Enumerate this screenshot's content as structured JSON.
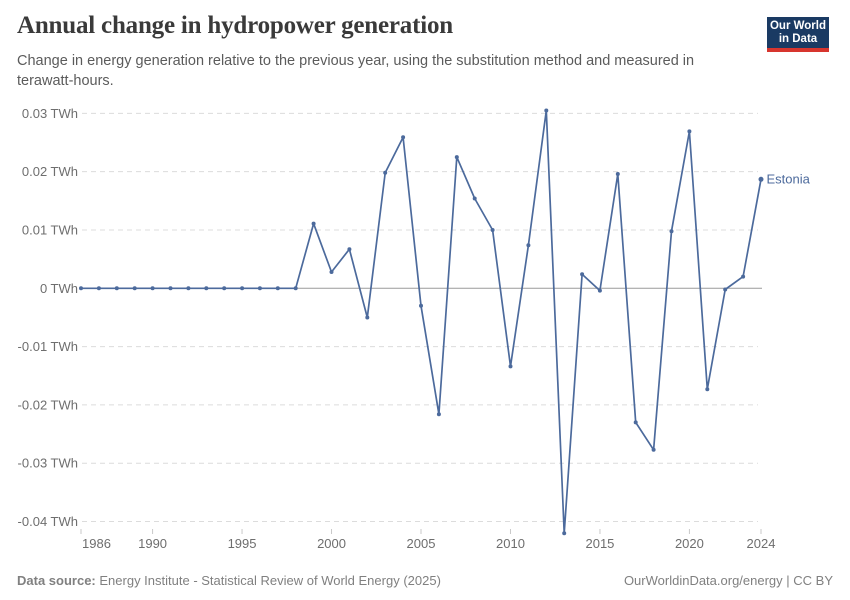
{
  "header": {
    "title": "Annual change in hydropower generation",
    "subtitle": "Change in energy generation relative to the previous year, using the substitution method and measured in terawatt-hours.",
    "logo": {
      "line1": "Our World",
      "line2": "in Data",
      "bg_color": "#1a3a63",
      "bar_color": "#d7352e"
    }
  },
  "chart_data": {
    "type": "line",
    "title": "Annual change in hydropower generation",
    "unit": "TWh",
    "xlabel": "",
    "ylabel": "",
    "xlim": [
      1986,
      2024
    ],
    "ylim": [
      -0.043,
      0.0315
    ],
    "grid": "horizontal-dashed",
    "zero_line": true,
    "legend_position": "end-of-line-label",
    "x": [
      1986,
      1987,
      1988,
      1989,
      1990,
      1991,
      1992,
      1993,
      1994,
      1995,
      1996,
      1997,
      1998,
      1999,
      2000,
      2001,
      2002,
      2003,
      2004,
      2005,
      2006,
      2007,
      2008,
      2009,
      2010,
      2011,
      2012,
      2013,
      2014,
      2015,
      2016,
      2017,
      2018,
      2019,
      2020,
      2021,
      2022,
      2023,
      2024
    ],
    "series": [
      {
        "name": "Estonia",
        "color": "#4c6a9c",
        "values": [
          0,
          0,
          0,
          0,
          0,
          0,
          0,
          0,
          0,
          0,
          0,
          0,
          0,
          0.0111,
          0.0028,
          0.0067,
          -0.005,
          0.0198,
          0.0259,
          -0.003,
          -0.0216,
          0.0225,
          0.0154,
          0.01,
          -0.0134,
          0.0074,
          0.0305,
          -0.042,
          0.0024,
          -0.0004,
          0.0196,
          -0.023,
          -0.0277,
          0.0098,
          0.0269,
          -0.0173,
          -0.0002,
          0.002,
          0.0187
        ]
      }
    ],
    "x_ticks": [
      {
        "value": 1986,
        "label": "1986"
      },
      {
        "value": 1990,
        "label": "1990"
      },
      {
        "value": 1995,
        "label": "1995"
      },
      {
        "value": 2000,
        "label": "2000"
      },
      {
        "value": 2005,
        "label": "2005"
      },
      {
        "value": 2010,
        "label": "2010"
      },
      {
        "value": 2015,
        "label": "2015"
      },
      {
        "value": 2020,
        "label": "2020"
      },
      {
        "value": 2024,
        "label": "2024"
      }
    ],
    "y_ticks": [
      {
        "value": 0.03,
        "label": "0.03 TWh"
      },
      {
        "value": 0.02,
        "label": "0.02 TWh"
      },
      {
        "value": 0.01,
        "label": "0.01 TWh"
      },
      {
        "value": 0,
        "label": "0 TWh"
      },
      {
        "value": -0.01,
        "label": "-0.01 TWh"
      },
      {
        "value": -0.02,
        "label": "-0.02 TWh"
      },
      {
        "value": -0.03,
        "label": "-0.03 TWh"
      },
      {
        "value": -0.04,
        "label": "-0.04 TWh"
      }
    ]
  },
  "footer": {
    "source_label": "Data source:",
    "source_text": "Energy Institute - Statistical Review of World Energy (2025)",
    "credit": "OurWorldinData.org/energy | CC BY"
  },
  "colors": {
    "line": "#4c6a9c",
    "grid": "#dcdcdc",
    "zero_line": "#9a9a9a",
    "tick_mark": "#c9c9c9",
    "tick_text": "#6e6e6e",
    "end_label_text": "#4c6a9c"
  }
}
